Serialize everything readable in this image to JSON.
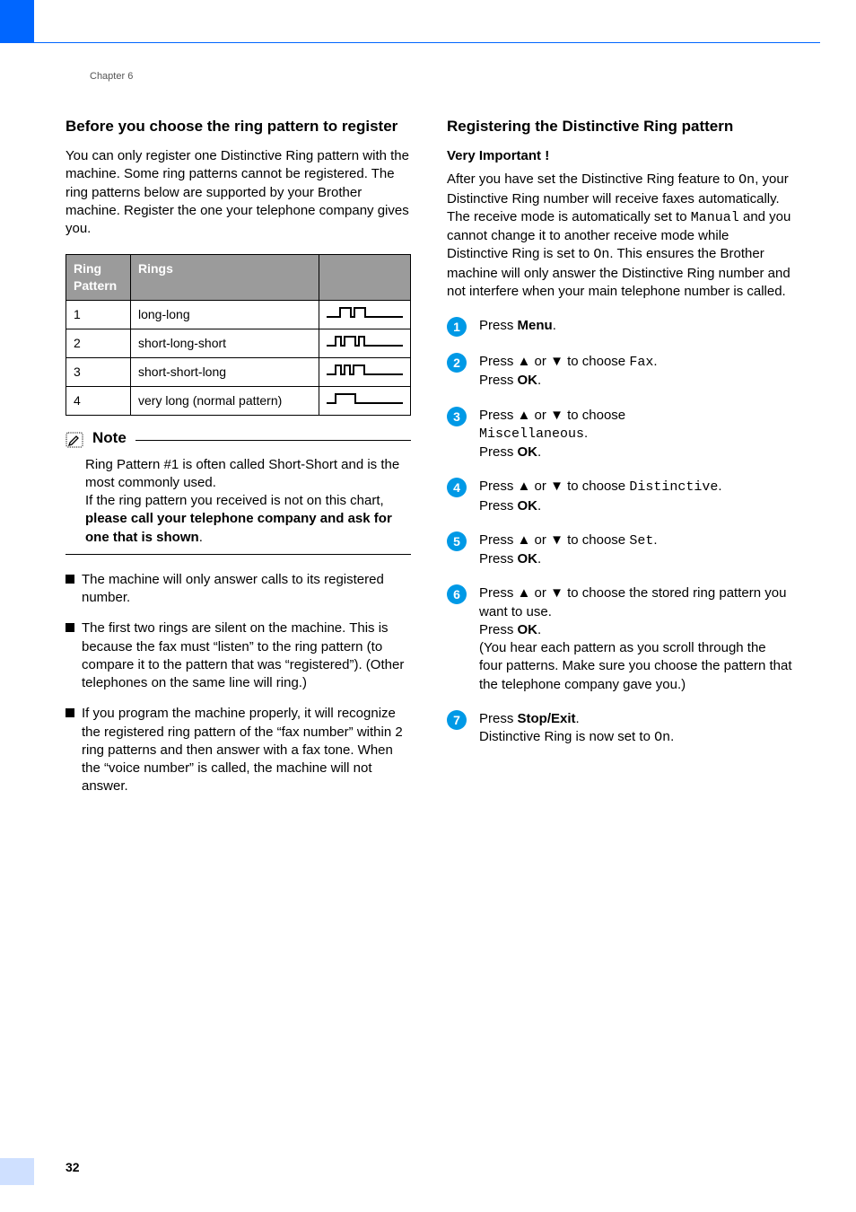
{
  "chapter_label": "Chapter 6",
  "page_number": "32",
  "left": {
    "heading": "Before you choose the ring pattern to register",
    "intro": "You can only register one Distinctive Ring pattern with the machine. Some ring patterns cannot be registered. The ring patterns below are supported by your Brother machine. Register the one your telephone company gives you.",
    "table": {
      "col_pattern": "Ring Pattern",
      "col_rings": "Rings",
      "rows": [
        {
          "n": "1",
          "rings": "long-long"
        },
        {
          "n": "2",
          "rings": "short-long-short"
        },
        {
          "n": "3",
          "rings": "short-short-long"
        },
        {
          "n": "4",
          "rings": "very long (normal pattern)"
        }
      ]
    },
    "note": {
      "label": "Note",
      "line1": "Ring Pattern #1 is often called Short-Short and is the most commonly used.",
      "line2_pre": "If the ring pattern you received is not on this chart, ",
      "line2_bold": "please call your telephone company and ask for one that is shown",
      "line2_post": "."
    },
    "bullets": [
      "The machine will only answer calls to its registered number.",
      "The first two rings are silent on the machine. This is because the fax must “listen” to the ring pattern (to compare it to the pattern that was “registered”). (Other telephones on the same line will ring.)",
      "If you program the machine properly, it will recognize the registered ring pattern of the “fax number” within 2 ring patterns and then answer with a fax tone. When the “voice number” is called, the machine will not answer."
    ]
  },
  "right": {
    "heading": "Registering the Distinctive Ring pattern",
    "imp_label": "Very Important !",
    "intro_pre": "After you have set the Distinctive Ring feature to ",
    "intro_on1": "On",
    "intro_mid1": ", your Distinctive Ring number will receive faxes automatically. The receive mode is automatically set to ",
    "intro_manual": "Manual",
    "intro_mid2": " and you cannot change it to another receive mode while Distinctive Ring is set to ",
    "intro_on2": "On",
    "intro_post": ". This ensures the Brother machine will only answer the Distinctive Ring number and not interfere when your main telephone number is called.",
    "steps": [
      {
        "color": "#0099e6",
        "num": "1",
        "parts": [
          {
            "t": "Press ",
            "b": false
          },
          {
            "t": "Menu",
            "b": true
          },
          {
            "t": ".",
            "b": false
          }
        ]
      },
      {
        "color": "#0099e6",
        "num": "2",
        "parts": [
          {
            "t": "Press ",
            "b": false
          },
          {
            "t": "▲",
            "b": true
          },
          {
            "t": " or ",
            "b": false
          },
          {
            "t": "▼",
            "b": true
          },
          {
            "t": " to choose ",
            "b": false
          },
          {
            "t": "Fax",
            "mono": true
          },
          {
            "t": ".",
            "b": false
          },
          {
            "br": true
          },
          {
            "t": "Press ",
            "b": false
          },
          {
            "t": "OK",
            "b": true
          },
          {
            "t": ".",
            "b": false
          }
        ]
      },
      {
        "color": "#0099e6",
        "num": "3",
        "parts": [
          {
            "t": "Press ",
            "b": false
          },
          {
            "t": "▲",
            "b": true
          },
          {
            "t": " or ",
            "b": false
          },
          {
            "t": "▼",
            "b": true
          },
          {
            "t": " to choose ",
            "b": false
          },
          {
            "br": true
          },
          {
            "t": "Miscellaneous",
            "mono": true
          },
          {
            "t": ".",
            "b": false
          },
          {
            "br": true
          },
          {
            "t": "Press ",
            "b": false
          },
          {
            "t": "OK",
            "b": true
          },
          {
            "t": ".",
            "b": false
          }
        ]
      },
      {
        "color": "#0099e6",
        "num": "4",
        "parts": [
          {
            "t": "Press ",
            "b": false
          },
          {
            "t": "▲",
            "b": true
          },
          {
            "t": " or ",
            "b": false
          },
          {
            "t": "▼",
            "b": true
          },
          {
            "t": " to choose ",
            "b": false
          },
          {
            "t": "Distinctive",
            "mono": true
          },
          {
            "t": ".",
            "b": false
          },
          {
            "br": true
          },
          {
            "t": "Press ",
            "b": false
          },
          {
            "t": "OK",
            "b": true
          },
          {
            "t": ".",
            "b": false
          }
        ]
      },
      {
        "color": "#0099e6",
        "num": "5",
        "parts": [
          {
            "t": "Press ",
            "b": false
          },
          {
            "t": "▲",
            "b": true
          },
          {
            "t": " or ",
            "b": false
          },
          {
            "t": "▼",
            "b": true
          },
          {
            "t": " to choose ",
            "b": false
          },
          {
            "t": "Set",
            "mono": true
          },
          {
            "t": ".",
            "b": false
          },
          {
            "br": true
          },
          {
            "t": "Press ",
            "b": false
          },
          {
            "t": "OK",
            "b": true
          },
          {
            "t": ".",
            "b": false
          }
        ]
      },
      {
        "color": "#0099e6",
        "num": "6",
        "parts": [
          {
            "t": "Press ",
            "b": false
          },
          {
            "t": "▲",
            "b": true
          },
          {
            "t": " or ",
            "b": false
          },
          {
            "t": "▼",
            "b": true
          },
          {
            "t": " to choose the stored ring pattern you want to use.",
            "b": false
          },
          {
            "br": true
          },
          {
            "t": "Press ",
            "b": false
          },
          {
            "t": "OK",
            "b": true
          },
          {
            "t": ".",
            "b": false
          },
          {
            "br": true
          },
          {
            "t": "(You hear each pattern as you scroll through the four patterns. Make sure you choose the pattern that the telephone company gave you.)",
            "b": false
          }
        ]
      },
      {
        "color": "#0099e6",
        "num": "7",
        "parts": [
          {
            "t": "Press ",
            "b": false
          },
          {
            "t": "Stop/Exit",
            "b": true
          },
          {
            "t": ".",
            "b": false
          },
          {
            "br": true
          },
          {
            "t": "Distinctive Ring is now set to ",
            "b": false
          },
          {
            "t": "On",
            "mono": true
          },
          {
            "t": ".",
            "b": false
          }
        ]
      }
    ]
  },
  "ring_svgs": {
    "height": 14,
    "width": 85,
    "base_color": "#000"
  }
}
